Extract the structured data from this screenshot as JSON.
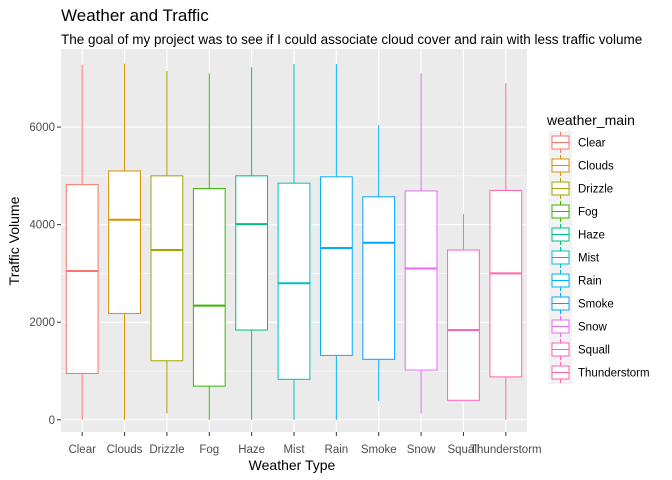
{
  "chart_data": {
    "type": "boxplot",
    "title": "Weather and Traffic",
    "subtitle": "The goal of my project was to see if I could associate cloud cover and rain with less traffic volume",
    "xlabel": "Weather Type",
    "ylabel": "Traffic Volume",
    "ylim": [
      -250,
      7600
    ],
    "yticks": [
      0,
      2000,
      4000,
      6000
    ],
    "grid": true,
    "legend_title": "weather_main",
    "legend_position": "right",
    "categories": [
      "Clear",
      "Clouds",
      "Drizzle",
      "Fog",
      "Haze",
      "Mist",
      "Rain",
      "Smoke",
      "Snow",
      "Squall",
      "Thunderstorm"
    ],
    "colors": [
      "#F8766D",
      "#D89000",
      "#A3A500",
      "#39B600",
      "#00BF7D",
      "#00BFC4",
      "#00B0F6",
      "#00A5FF",
      "#E76BF3",
      "#FF62BC",
      "#FF66A8"
    ],
    "boxes": [
      {
        "min": 0,
        "q1": 950,
        "median": 3050,
        "q3": 4820,
        "max": 7280
      },
      {
        "min": 0,
        "q1": 2180,
        "median": 4100,
        "q3": 5100,
        "max": 7300
      },
      {
        "min": 130,
        "q1": 1210,
        "median": 3480,
        "q3": 5000,
        "max": 7150
      },
      {
        "min": 0,
        "q1": 690,
        "median": 2340,
        "q3": 4740,
        "max": 7100
      },
      {
        "min": 0,
        "q1": 1840,
        "median": 4010,
        "q3": 5000,
        "max": 7230
      },
      {
        "min": 0,
        "q1": 830,
        "median": 2800,
        "q3": 4850,
        "max": 7290
      },
      {
        "min": 0,
        "q1": 1320,
        "median": 3520,
        "q3": 4980,
        "max": 7290
      },
      {
        "min": 380,
        "q1": 1240,
        "median": 3630,
        "q3": 4570,
        "max": 6040
      },
      {
        "min": 130,
        "q1": 1020,
        "median": 3100,
        "q3": 4690,
        "max": 7100
      },
      {
        "min": 400,
        "q1": 400,
        "median": 1840,
        "q3": 3480,
        "max": 4220
      },
      {
        "min": 0,
        "q1": 880,
        "median": 3000,
        "q3": 4700,
        "max": 6900
      }
    ]
  }
}
